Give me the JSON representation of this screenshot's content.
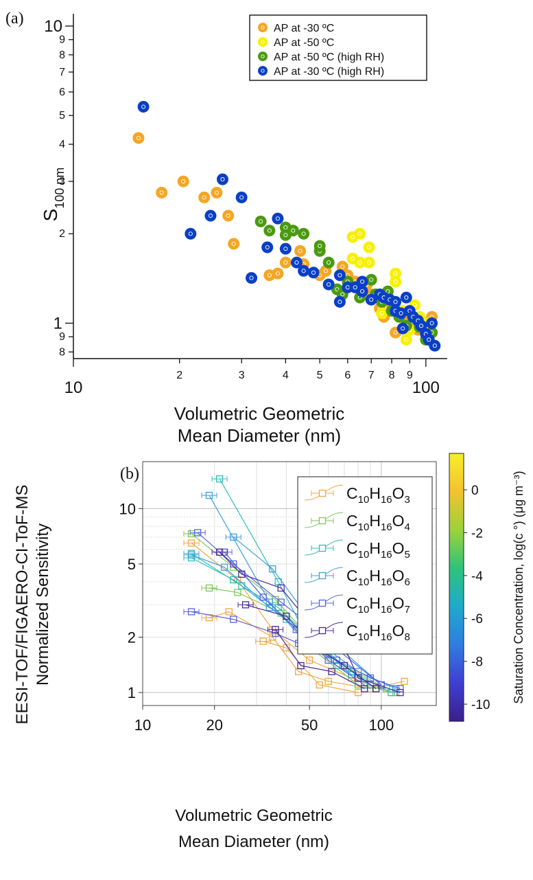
{
  "panel_a_label": "(a)",
  "panel_b_label": "(b)",
  "colors": {
    "orange": "#f5a623",
    "yellow": "#f7f000",
    "green": "#4a9a10",
    "blue": "#0a3fc6"
  },
  "chart_data": [
    {
      "type": "scatter",
      "panel": "a",
      "title": "",
      "xlabel": "Volumetric Geometric Mean Diameter (nm)",
      "ylabel": "S100 nm",
      "xscale": "log",
      "yscale": "log",
      "xlim": [
        10,
        115
      ],
      "ylim": [
        0.76,
        11
      ],
      "x_tick_labels": [
        {
          "v": 10,
          "t": "10",
          "major": true
        },
        {
          "v": 20,
          "t": "2"
        },
        {
          "v": 30,
          "t": "3"
        },
        {
          "v": 40,
          "t": "4"
        },
        {
          "v": 50,
          "t": "5"
        },
        {
          "v": 60,
          "t": "6"
        },
        {
          "v": 70,
          "t": "7"
        },
        {
          "v": 80,
          "t": "8"
        },
        {
          "v": 90,
          "t": "9"
        },
        {
          "v": 100,
          "t": "100",
          "major": true
        }
      ],
      "y_tick_labels": [
        {
          "v": 0.8,
          "t": "8"
        },
        {
          "v": 0.9,
          "t": "9"
        },
        {
          "v": 1,
          "t": "1",
          "major": true
        },
        {
          "v": 2,
          "t": "2"
        },
        {
          "v": 3,
          "t": "3"
        },
        {
          "v": 4,
          "t": "4"
        },
        {
          "v": 5,
          "t": "5"
        },
        {
          "v": 6,
          "t": "6"
        },
        {
          "v": 7,
          "t": "7"
        },
        {
          "v": 8,
          "t": "8"
        },
        {
          "v": 9,
          "t": "9"
        },
        {
          "v": 10,
          "t": "10",
          "major": true
        }
      ],
      "legend_position": "top-right",
      "grid": false,
      "series": [
        {
          "name": "AP at -30 ºC",
          "color": "#f5a623",
          "points": [
            [
              15.3,
              4.2
            ],
            [
              17.8,
              2.75
            ],
            [
              20.5,
              3.0
            ],
            [
              23.5,
              2.65
            ],
            [
              25.5,
              2.75
            ],
            [
              27.5,
              2.3
            ],
            [
              28.5,
              1.85
            ],
            [
              32,
              1.42
            ],
            [
              36,
              1.45
            ],
            [
              38,
              1.47
            ],
            [
              40,
              1.6
            ],
            [
              44,
              1.75
            ],
            [
              45,
              1.58
            ],
            [
              50,
              1.45
            ],
            [
              52,
              1.5
            ],
            [
              58,
              1.55
            ],
            [
              60,
              1.45
            ],
            [
              63,
              1.38
            ],
            [
              65,
              1.3
            ],
            [
              68,
              1.35
            ],
            [
              70,
              1.25
            ],
            [
              74,
              1.12
            ],
            [
              76,
              1.05
            ],
            [
              80,
              1.15
            ],
            [
              82,
              0.93
            ],
            [
              86,
              1.05
            ],
            [
              90,
              1.0
            ],
            [
              95,
              0.95
            ],
            [
              100,
              1.0
            ],
            [
              104,
              1.05
            ]
          ]
        },
        {
          "name": "AP at -50 ºC",
          "color": "#f7f000",
          "points": [
            [
              62,
              1.95
            ],
            [
              62,
              1.65
            ],
            [
              65,
              2.0
            ],
            [
              65,
              1.6
            ],
            [
              69,
              1.8
            ],
            [
              69,
              1.6
            ],
            [
              75,
              1.08
            ],
            [
              82,
              1.47
            ],
            [
              82,
              1.38
            ],
            [
              86,
              1.1
            ],
            [
              88,
              0.88
            ],
            [
              90,
              0.95
            ],
            [
              93,
              1.15
            ],
            [
              96,
              1.05
            ],
            [
              102,
              1.0
            ]
          ]
        },
        {
          "name": "AP at -50 ºC (high RH)",
          "color": "#4a9a10",
          "points": [
            [
              34,
              2.2
            ],
            [
              36,
              2.05
            ],
            [
              40,
              2.1
            ],
            [
              40,
              1.98
            ],
            [
              42,
              2.05
            ],
            [
              45,
              2.0
            ],
            [
              50,
              1.75
            ],
            [
              50,
              1.82
            ],
            [
              53,
              1.6
            ],
            [
              56,
              1.3
            ],
            [
              58,
              1.25
            ],
            [
              60,
              1.38
            ],
            [
              63,
              1.32
            ],
            [
              65,
              1.22
            ],
            [
              70,
              1.4
            ],
            [
              72,
              1.25
            ],
            [
              75,
              1.18
            ],
            [
              78,
              1.28
            ],
            [
              80,
              1.1
            ],
            [
              84,
              1.05
            ],
            [
              88,
              0.98
            ],
            [
              92,
              1.05
            ],
            [
              96,
              0.97
            ],
            [
              100,
              0.88
            ],
            [
              104,
              0.93
            ]
          ]
        },
        {
          "name": "AP  at -30 ºC (high RH)",
          "color": "#0a3fc6",
          "points": [
            [
              15.8,
              5.35
            ],
            [
              21.5,
              2.0
            ],
            [
              24.5,
              2.3
            ],
            [
              26.5,
              3.05
            ],
            [
              30,
              2.65
            ],
            [
              32,
              1.42
            ],
            [
              35.5,
              1.8
            ],
            [
              38,
              2.25
            ],
            [
              40,
              1.78
            ],
            [
              43,
              1.6
            ],
            [
              45,
              1.5
            ],
            [
              48,
              1.48
            ],
            [
              53,
              1.35
            ],
            [
              57,
              1.45
            ],
            [
              57,
              1.18
            ],
            [
              60,
              1.32
            ],
            [
              63,
              1.32
            ],
            [
              66,
              1.38
            ],
            [
              66,
              1.28
            ],
            [
              70,
              1.2
            ],
            [
              74,
              1.25
            ],
            [
              76,
              1.22
            ],
            [
              79,
              1.2
            ],
            [
              82,
              1.18
            ],
            [
              82,
              1.1
            ],
            [
              85,
              1.08
            ],
            [
              86,
              0.96
            ],
            [
              88,
              1.22
            ],
            [
              90,
              1.1
            ],
            [
              92,
              1.05
            ],
            [
              95,
              1.02
            ],
            [
              97,
              0.98
            ],
            [
              100,
              0.92
            ],
            [
              102,
              0.88
            ],
            [
              104,
              1.0
            ],
            [
              106,
              0.84
            ]
          ]
        }
      ]
    },
    {
      "type": "line",
      "panel": "b",
      "title": "",
      "xlabel": "Volumetric Geometric Mean Diameter (nm)",
      "ylabel": "EESI-TOF/FIGAERO-CI-ToF-MS Normalized Sensitivity",
      "xscale": "log",
      "yscale": "log",
      "xlim": [
        10,
        170
      ],
      "ylim": [
        0.85,
        18
      ],
      "x_tick_labels": [
        {
          "v": 10,
          "t": "10"
        },
        {
          "v": 20,
          "t": "20"
        },
        {
          "v": 50,
          "t": "50"
        },
        {
          "v": 100,
          "t": "100"
        }
      ],
      "y_tick_labels": [
        {
          "v": 1,
          "t": "1"
        },
        {
          "v": 2,
          "t": "2"
        },
        {
          "v": 5,
          "t": "5"
        },
        {
          "v": 10,
          "t": "10"
        }
      ],
      "grid": true,
      "legend_position": "top-right",
      "colorbar": {
        "label": "Saturation Concentration, log(c °) (μg m⁻³)",
        "ticks": [
          {
            "v": 0,
            "t": "0"
          },
          {
            "v": -2,
            "t": "-2"
          },
          {
            "v": -4,
            "t": "-4"
          },
          {
            "v": -6,
            "t": "-6"
          },
          {
            "v": -8,
            "t": "-8"
          },
          {
            "v": -10,
            "t": "-10"
          }
        ],
        "range": [
          -10.8,
          1.7
        ],
        "stops": [
          "#3b1f8a",
          "#3f3fd0",
          "#2f7de0",
          "#1faacb",
          "#2ec37a",
          "#9bd23a",
          "#f3c230",
          "#f7ee2a"
        ]
      },
      "series": [
        {
          "name": "C10H16O3",
          "sub": [
            "10",
            "16",
            "3"
          ],
          "color": "#f4a640",
          "lines": [
            [
              [
                16,
                6.5
              ],
              [
                25,
                4.1
              ],
              [
                35,
                2.2
              ],
              [
                50,
                1.5
              ],
              [
                75,
                1.2
              ],
              [
                110,
                1.0
              ]
            ],
            [
              [
                19,
                2.55
              ],
              [
                23,
                2.75
              ],
              [
                35,
                2.0
              ],
              [
                45,
                1.3
              ],
              [
                60,
                1.15
              ],
              [
                90,
                1.05
              ],
              [
                125,
                1.15
              ]
            ],
            [
              [
                32,
                1.9
              ],
              [
                40,
                1.75
              ],
              [
                55,
                1.1
              ],
              [
                80,
                1.0
              ]
            ]
          ]
        },
        {
          "name": "C10H16O4",
          "sub": [
            "10",
            "16",
            "4"
          ],
          "color": "#7fc65a",
          "lines": [
            [
              [
                16,
                7.3
              ],
              [
                24,
                4.8
              ],
              [
                36,
                3.2
              ],
              [
                50,
                2.0
              ],
              [
                70,
                1.4
              ],
              [
                105,
                1.05
              ]
            ],
            [
              [
                19,
                3.7
              ],
              [
                25,
                3.5
              ],
              [
                38,
                2.7
              ],
              [
                52,
                1.7
              ],
              [
                80,
                1.1
              ],
              [
                115,
                1.0
              ]
            ]
          ]
        },
        {
          "name": "C10H16O5",
          "sub": [
            "10",
            "16",
            "5"
          ],
          "color": "#2ebfb6",
          "lines": [
            [
              [
                21,
                14.5
              ],
              [
                37,
                4.0
              ],
              [
                48,
                2.1
              ],
              [
                65,
                1.4
              ],
              [
                95,
                1.05
              ]
            ],
            [
              [
                16,
                5.7
              ],
              [
                26,
                3.8
              ],
              [
                37,
                2.9
              ],
              [
                52,
                1.9
              ],
              [
                75,
                1.3
              ],
              [
                110,
                1.0
              ]
            ],
            [
              [
                16,
                5.4
              ],
              [
                24,
                4.1
              ],
              [
                40,
                2.5
              ],
              [
                60,
                1.6
              ],
              [
                90,
                1.1
              ]
            ]
          ]
        },
        {
          "name": "C10H16O6",
          "sub": [
            "10",
            "16",
            "6"
          ],
          "color": "#3aa0e0",
          "lines": [
            [
              [
                19,
                11.8
              ],
              [
                34,
                3.1
              ],
              [
                46,
                2.0
              ],
              [
                60,
                1.7
              ],
              [
                80,
                1.3
              ],
              [
                115,
                1.05
              ]
            ],
            [
              [
                24,
                7.0
              ],
              [
                35,
                4.7
              ],
              [
                47,
                2.8
              ],
              [
                65,
                1.8
              ],
              [
                100,
                1.1
              ]
            ],
            [
              [
                16,
                5.6
              ],
              [
                22,
                4.8
              ],
              [
                34,
                2.9
              ],
              [
                50,
                2.0
              ],
              [
                75,
                1.25
              ]
            ]
          ]
        },
        {
          "name": "C10H16O7",
          "sub": [
            "10",
            "16",
            "7"
          ],
          "color": "#5a62e0",
          "lines": [
            [
              [
                16,
                2.75
              ],
              [
                24,
                2.5
              ],
              [
                36,
                2.1
              ],
              [
                45,
                1.85
              ],
              [
                65,
                1.5
              ],
              [
                90,
                1.2
              ],
              [
                120,
                1.05
              ]
            ],
            [
              [
                17,
                7.4
              ],
              [
                24,
                5.0
              ],
              [
                38,
                3.1
              ],
              [
                47,
                2.5
              ],
              [
                66,
                1.7
              ],
              [
                100,
                1.1
              ]
            ],
            [
              [
                22,
                5.8
              ],
              [
                32,
                3.3
              ],
              [
                44,
                2.2
              ],
              [
                60,
                1.5
              ],
              [
                85,
                1.1
              ]
            ]
          ]
        },
        {
          "name": "C10H16O8",
          "sub": [
            "10",
            "16",
            "8"
          ],
          "color": "#4a2a9a",
          "lines": [
            [
              [
                21,
                5.8
              ],
              [
                26,
                4.4
              ],
              [
                38,
                3.7
              ],
              [
                50,
                2.4
              ],
              [
                65,
                2.2
              ],
              [
                80,
                1.2
              ],
              [
                120,
                1.0
              ]
            ],
            [
              [
                27,
                3.0
              ],
              [
                40,
                2.6
              ],
              [
                52,
                1.8
              ],
              [
                70,
                1.4
              ],
              [
                95,
                1.05
              ]
            ],
            [
              [
                36,
                2.2
              ],
              [
                46,
                1.4
              ],
              [
                62,
                1.3
              ],
              [
                85,
                1.05
              ]
            ]
          ]
        }
      ]
    }
  ]
}
